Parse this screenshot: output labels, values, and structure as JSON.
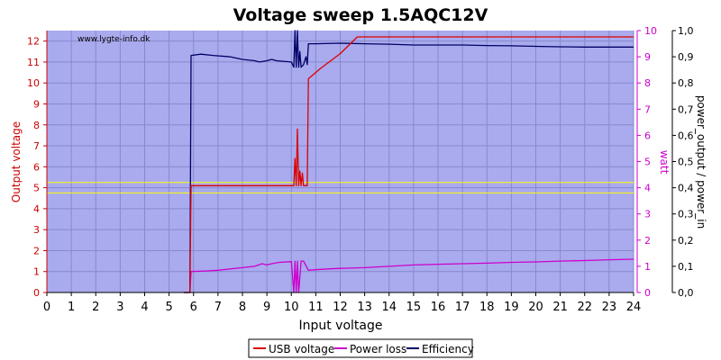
{
  "chart_data": {
    "type": "line",
    "title": "Voltage sweep 1.5AQC12V",
    "watermark": "www.lygte-info.dk",
    "xlabel": "Input voltage",
    "ylabel_left": "Output voltage",
    "ylabel_right1": "watt",
    "ylabel_right2": "power_output / power_in",
    "xlim": [
      0,
      24
    ],
    "ylim_left": [
      0,
      12.5
    ],
    "ylim_right1": [
      0,
      10
    ],
    "ylim_right2": [
      0,
      1.0
    ],
    "x_ticks": [
      "0",
      "1",
      "2",
      "3",
      "4",
      "5",
      "6",
      "7",
      "8",
      "9",
      "10",
      "11",
      "12",
      "13",
      "14",
      "15",
      "16",
      "17",
      "18",
      "19",
      "20",
      "21",
      "22",
      "23",
      "24"
    ],
    "y_left_ticks": [
      "0",
      "1",
      "2",
      "3",
      "4",
      "5",
      "6",
      "7",
      "8",
      "9",
      "10",
      "11",
      "12"
    ],
    "y_right1_ticks": [
      "0",
      "1",
      "2",
      "3",
      "4",
      "5",
      "6",
      "7",
      "8",
      "9",
      "10"
    ],
    "y_right2_ticks": [
      "0,0",
      "0,1",
      "0,2",
      "0,3",
      "0,4",
      "0,5",
      "0,6",
      "0,7",
      "0,8",
      "0,9",
      "1,0"
    ],
    "reference_lines_left": [
      4.75,
      5.25
    ],
    "colors": {
      "plot_bg": "#aaaaee",
      "grid": "#8888cc",
      "usb": "#dd0000",
      "loss": "#cc00cc",
      "eff": "#000066",
      "ref": "#ffff00",
      "left_axis": "#cc0000",
      "right_axis": "#cc00cc"
    },
    "series": [
      {
        "name": "USB voltage",
        "axis": "left",
        "x": [
          5.6,
          5.85,
          5.9,
          10.1,
          10.15,
          10.2,
          10.25,
          10.3,
          10.35,
          10.4,
          10.45,
          10.5,
          10.65,
          10.7,
          11.2,
          12.0,
          12.7,
          24.0
        ],
        "y": [
          0,
          0,
          5.1,
          5.1,
          6.4,
          5.1,
          7.8,
          5.1,
          5.8,
          5.1,
          5.7,
          5.1,
          5.1,
          10.2,
          10.7,
          11.4,
          12.2,
          12.2
        ]
      },
      {
        "name": "Power loss",
        "axis": "right1",
        "x": [
          5.6,
          5.85,
          5.9,
          6.5,
          7.0,
          7.5,
          8.0,
          8.5,
          8.8,
          9.0,
          9.2,
          9.5,
          10.0,
          10.1,
          10.15,
          10.2,
          10.25,
          10.3,
          10.4,
          10.5,
          10.7,
          11.0,
          11.5,
          12.0,
          13.0,
          14.0,
          15.0,
          16.0,
          17.0,
          18.0,
          19.0,
          20.0,
          21.0,
          22.0,
          23.0,
          24.0
        ],
        "y": [
          0,
          0,
          0.8,
          0.82,
          0.85,
          0.9,
          0.95,
          1.0,
          1.1,
          1.05,
          1.1,
          1.15,
          1.18,
          0.0,
          1.2,
          0.0,
          1.2,
          0.0,
          1.2,
          1.2,
          0.85,
          0.87,
          0.9,
          0.92,
          0.95,
          1.0,
          1.05,
          1.08,
          1.1,
          1.12,
          1.15,
          1.17,
          1.2,
          1.22,
          1.25,
          1.27
        ]
      },
      {
        "name": "Efficiency",
        "axis": "right2",
        "x": [
          5.6,
          5.85,
          5.9,
          6.3,
          6.8,
          7.5,
          8.0,
          8.5,
          8.7,
          9.0,
          9.2,
          9.4,
          10.0,
          10.1,
          10.15,
          10.2,
          10.25,
          10.3,
          10.35,
          10.4,
          10.5,
          10.6,
          10.65,
          10.7,
          11.0,
          12.0,
          13.0,
          14.0,
          15.0,
          16.0,
          17.0,
          18.0,
          19.0,
          20.0,
          21.0,
          22.0,
          24.0
        ],
        "y": [
          0,
          0,
          0.905,
          0.91,
          0.905,
          0.9,
          0.89,
          0.885,
          0.88,
          0.885,
          0.89,
          0.885,
          0.88,
          0.86,
          1.0,
          0.86,
          1.0,
          0.86,
          0.92,
          0.86,
          0.87,
          0.9,
          0.87,
          0.95,
          0.95,
          0.952,
          0.95,
          0.948,
          0.945,
          0.945,
          0.945,
          0.943,
          0.942,
          0.94,
          0.938,
          0.937,
          0.937
        ]
      }
    ],
    "legend": {
      "position": "bottom-center",
      "items": [
        "USB voltage",
        "Power loss",
        "Efficiency"
      ]
    }
  }
}
